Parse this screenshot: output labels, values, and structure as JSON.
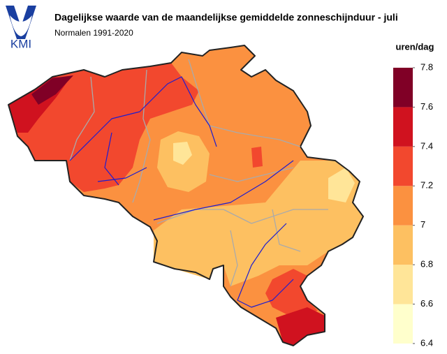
{
  "header": {
    "logo": "KMI",
    "title": "Dagelijkse waarde van de maandelijkse gemiddelde zonneschijnduur - juli",
    "subtitle": "Normalen 1991-2020"
  },
  "legend": {
    "title": "uren/dag",
    "ticks": [
      6.4,
      6.6,
      6.8,
      7,
      7.2,
      7.4,
      7.6,
      7.8
    ],
    "colors": [
      "#ffffcc",
      "#ffe598",
      "#fdc061",
      "#fb9140",
      "#f2482e",
      "#d0121f",
      "#800026"
    ]
  }
}
